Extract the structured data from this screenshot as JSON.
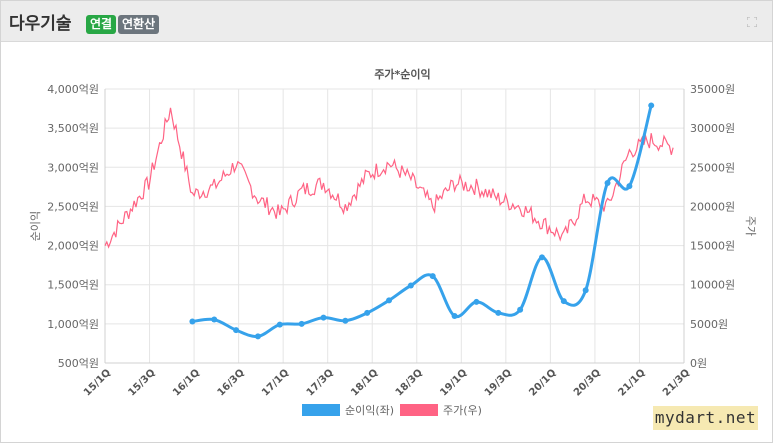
{
  "header": {
    "company": "다우기술",
    "badge_consolidated": "연결",
    "badge_annualized": "연환산"
  },
  "watermark": "mydart.net",
  "icons": {
    "expand": "expand-icon"
  },
  "chart_data": {
    "type": "line",
    "title": "주가*순이익",
    "ylabel_left": "순이익",
    "ylabel_right": "주가",
    "ylim_left": [
      500,
      4000
    ],
    "ylim_right": [
      0,
      35000
    ],
    "yticks_left": [
      "500억원",
      "1,000억원",
      "1,500억원",
      "2,000억원",
      "2,500억원",
      "3,000억원",
      "3,500억원",
      "4,000억원"
    ],
    "yticks_right": [
      "0원",
      "5000원",
      "10000원",
      "15000원",
      "20000원",
      "25000원",
      "30000원",
      "35000원"
    ],
    "xticks": [
      "15/1Q",
      "15/3Q",
      "16/1Q",
      "16/3Q",
      "17/1Q",
      "17/3Q",
      "18/1Q",
      "18/3Q",
      "19/1Q",
      "19/3Q",
      "20/1Q",
      "20/3Q",
      "21/1Q",
      "21/3Q"
    ],
    "grid": true,
    "legend_position": "bottom",
    "series": [
      {
        "name": "순이익(좌)",
        "axis": "left",
        "color": "#36a2eb",
        "x": [
          "16/1Q",
          "16/2Q",
          "16/3Q",
          "16/4Q",
          "17/1Q",
          "17/2Q",
          "17/3Q",
          "17/4Q",
          "18/1Q",
          "18/2Q",
          "18/3Q",
          "18/4Q",
          "19/1Q",
          "19/2Q",
          "19/3Q",
          "19/4Q",
          "20/1Q",
          "20/2Q",
          "20/3Q",
          "20/4Q",
          "21/1Q",
          "21/2Q"
        ],
        "values": [
          1030,
          1055,
          920,
          840,
          990,
          1000,
          1080,
          1040,
          1140,
          1300,
          1490,
          1610,
          1100,
          1280,
          1140,
          1180,
          1850,
          1290,
          1430,
          2800,
          2760,
          3790
        ]
      },
      {
        "name": "주가(우)",
        "axis": "right",
        "color": "#ff6384",
        "x": [
          "15/1Q",
          "15/2Q",
          "15/3Q",
          "15/4Q",
          "16/1Q",
          "16/2Q",
          "16/3Q",
          "16/4Q",
          "17/1Q",
          "17/2Q",
          "17/3Q",
          "17/4Q",
          "18/1Q",
          "18/2Q",
          "18/3Q",
          "18/4Q",
          "19/1Q",
          "19/2Q",
          "19/3Q",
          "19/4Q",
          "20/1Q",
          "20/2Q",
          "20/3Q",
          "20/4Q",
          "21/1Q",
          "21/2Q",
          "21/3Q"
        ],
        "values": [
          15000,
          19000,
          23000,
          32500,
          21500,
          22500,
          25500,
          21000,
          19000,
          22000,
          23000,
          20000,
          24000,
          25500,
          23500,
          20000,
          23000,
          22500,
          21000,
          20000,
          18000,
          16000,
          21000,
          20000,
          27000,
          28500,
          27500
        ]
      }
    ]
  }
}
